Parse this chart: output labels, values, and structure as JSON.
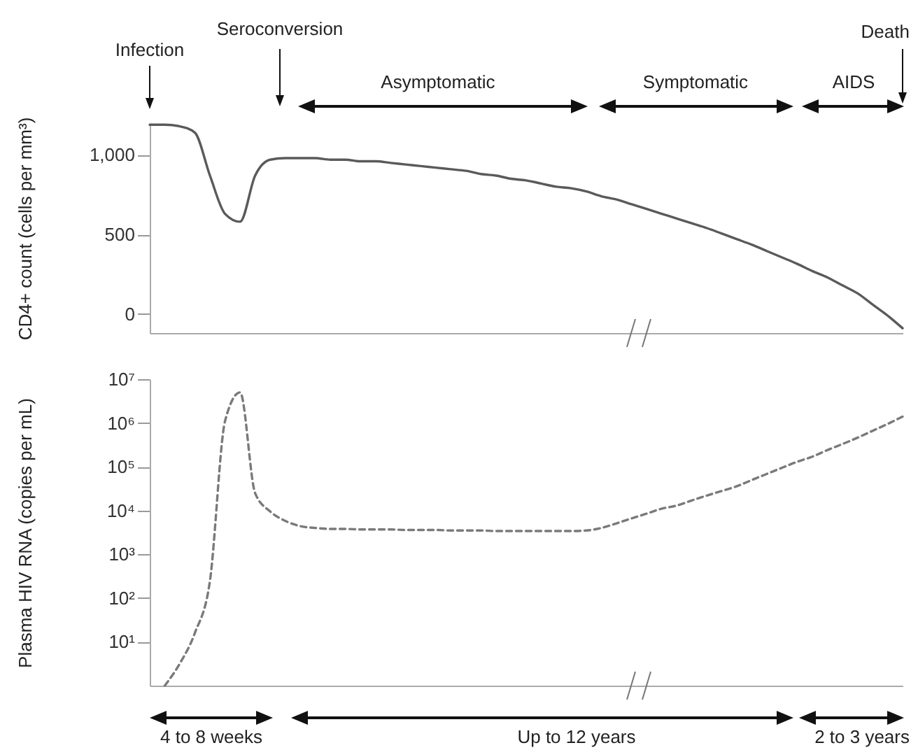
{
  "chart_data": [
    {
      "type": "line",
      "ylabel": "CD4+ count (cells per mm³)",
      "categories": [
        null,
        null,
        null,
        null,
        null,
        null,
        null,
        null,
        null,
        null,
        null,
        null,
        null,
        null,
        null,
        null,
        null,
        null,
        null,
        null,
        null,
        null,
        null,
        null,
        null,
        null,
        null,
        null,
        null,
        null,
        null,
        null,
        null,
        null,
        null,
        null,
        null,
        null,
        null,
        null,
        null,
        null,
        null,
        null,
        null,
        null,
        null,
        null,
        null,
        null,
        null
      ],
      "series": [
        {
          "color": "#5a5a5a",
          "values": [
            1190,
            1190,
            1180,
            1140,
            870,
            630,
            580,
            870,
            970,
            980,
            980,
            980,
            970,
            970,
            960,
            960,
            950,
            940,
            930,
            920,
            910,
            900,
            880,
            870,
            850,
            840,
            820,
            800,
            790,
            770,
            740,
            720,
            690,
            660,
            630,
            600,
            570,
            540,
            505,
            470,
            435,
            395,
            355,
            315,
            270,
            230,
            180,
            130,
            60,
            -10,
            -90
          ]
        }
      ],
      "ylim": [
        -120,
        1200
      ],
      "yticks": [
        0,
        500,
        {
          "value": 1000,
          "label": "1,000"
        }
      ],
      "tick_labels": "y",
      "line_style": "solid",
      "annotations": [
        "Infection",
        "Seroconversion",
        "Asymptomatic",
        "Symptomatic",
        "AIDS",
        "Death"
      ]
    },
    {
      "type": "line",
      "ylabel": "Plasma HIV RNA (copies per mL)",
      "categories": [
        null,
        null,
        null,
        null,
        null,
        null,
        null,
        null,
        null,
        null,
        null,
        null,
        null,
        null,
        null,
        null,
        null,
        null,
        null,
        null,
        null,
        null,
        null,
        null,
        null,
        null,
        null,
        null,
        null,
        null,
        null,
        null,
        null,
        null,
        null,
        null,
        null,
        null,
        null,
        null,
        null,
        null,
        null,
        null,
        null,
        null,
        null,
        null,
        null,
        null,
        null
      ],
      "series": [
        {
          "color": "#7a7a7a",
          "values": [
            null,
            1,
            3.2,
            16,
            250,
            1100000,
            5000000,
            25000,
            9500,
            5800,
            4400,
            4000,
            3800,
            3800,
            3700,
            3700,
            3700,
            3600,
            3600,
            3600,
            3500,
            3500,
            3500,
            3400,
            3400,
            3400,
            3400,
            3400,
            3400,
            3500,
            4000,
            5100,
            6600,
            8500,
            11000,
            13000,
            17000,
            22000,
            28000,
            36000,
            50000,
            69000,
            95000,
            130000,
            170000,
            240000,
            330000,
            460000,
            660000,
            950000,
            1400000
          ]
        }
      ],
      "ylim": [
        1,
        10000000
      ],
      "yticks": [
        {
          "value": 10,
          "label": "10¹"
        },
        {
          "value": 100,
          "label": "10²"
        },
        {
          "value": 1000,
          "label": "10³"
        },
        {
          "value": 10000,
          "label": "10⁴"
        },
        {
          "value": 100000,
          "label": "10⁵"
        },
        {
          "value": 1000000,
          "label": "10⁶"
        },
        {
          "value": 10000000,
          "label": "10⁷"
        }
      ],
      "log": true,
      "tick_labels": "y",
      "line_style": "dashed",
      "annotations": [
        "4 to 8 weeks",
        "Up to 12 years",
        "2 to 3 years"
      ]
    }
  ]
}
